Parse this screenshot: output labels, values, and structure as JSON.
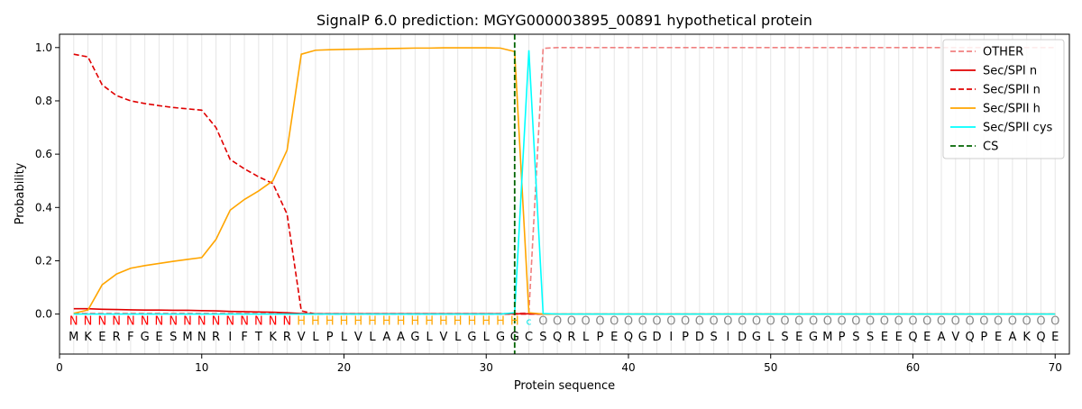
{
  "chart_data": {
    "type": "line",
    "title": "SignalP 6.0 prediction: MGYG000003895_00891 hypothetical protein",
    "xlabel": "Protein sequence",
    "ylabel": "Probability",
    "xlim": [
      0,
      71
    ],
    "ylim": [
      -0.15,
      1.05
    ],
    "xticks": [
      0,
      10,
      20,
      30,
      40,
      50,
      60,
      70
    ],
    "yticks": [
      0.0,
      0.2,
      0.4,
      0.6,
      0.8,
      1.0
    ],
    "grid": "vertical lines at each residue position",
    "legend_position": "top-right",
    "sequence": [
      "M",
      "K",
      "E",
      "R",
      "F",
      "G",
      "E",
      "S",
      "M",
      "N",
      "R",
      "I",
      "F",
      "T",
      "K",
      "R",
      "V",
      "L",
      "P",
      "L",
      "V",
      "L",
      "A",
      "A",
      "G",
      "L",
      "V",
      "L",
      "G",
      "L",
      "G",
      "G",
      "C",
      "S",
      "Q",
      "R",
      "L",
      "P",
      "E",
      "Q",
      "G",
      "D",
      "I",
      "P",
      "D",
      "S",
      "I",
      "D",
      "G",
      "L",
      "S",
      "E",
      "G",
      "M",
      "P",
      "S",
      "S",
      "E",
      "E",
      "Q",
      "E",
      "A",
      "V",
      "Q",
      "P",
      "E",
      "A",
      "K",
      "Q",
      "E"
    ],
    "region_labels": [
      "N",
      "N",
      "N",
      "N",
      "N",
      "N",
      "N",
      "N",
      "N",
      "N",
      "N",
      "N",
      "N",
      "N",
      "N",
      "N",
      "H",
      "H",
      "H",
      "H",
      "H",
      "H",
      "H",
      "H",
      "H",
      "H",
      "H",
      "H",
      "H",
      "H",
      "H",
      "H",
      "C",
      "O",
      "O",
      "O",
      "O",
      "O",
      "O",
      "O",
      "O",
      "O",
      "O",
      "O",
      "O",
      "O",
      "O",
      "O",
      "O",
      "O",
      "O",
      "O",
      "O",
      "O",
      "O",
      "O",
      "O",
      "O",
      "O",
      "O",
      "O",
      "O",
      "O",
      "O",
      "O",
      "O",
      "O",
      "O",
      "O",
      "O"
    ],
    "region_colors": {
      "N": "#ff0000",
      "H": "#ffa500",
      "C": "#00e5e5",
      "O": "#888888"
    },
    "cs_position": 32,
    "x": [
      1,
      2,
      3,
      4,
      5,
      6,
      7,
      8,
      9,
      10,
      11,
      12,
      13,
      14,
      15,
      16,
      17,
      18,
      19,
      20,
      21,
      22,
      23,
      24,
      25,
      26,
      27,
      28,
      29,
      30,
      31,
      32,
      33,
      34,
      35,
      36,
      37,
      38,
      39,
      40,
      41,
      42,
      43,
      44,
      45,
      46,
      47,
      48,
      49,
      50,
      51,
      52,
      53,
      54,
      55,
      56,
      57,
      58,
      59,
      60,
      61,
      62,
      63,
      64,
      65,
      66,
      67,
      68,
      69,
      70
    ],
    "series": [
      {
        "name": "OTHER",
        "color": "#f08080",
        "dash": "dashed",
        "values": [
          0.003,
          0.003,
          0.003,
          0.003,
          0.003,
          0.003,
          0.003,
          0.003,
          0.003,
          0.003,
          0.003,
          0.003,
          0.003,
          0.003,
          0.003,
          0.003,
          0.003,
          0.002,
          0.002,
          0.002,
          0.002,
          0.002,
          0.002,
          0.002,
          0.002,
          0.002,
          0.002,
          0.002,
          0.002,
          0.002,
          0.002,
          0.002,
          0.005,
          0.997,
          1.0,
          1.0,
          1.0,
          1.0,
          1.0,
          1.0,
          1.0,
          1.0,
          1.0,
          1.0,
          1.0,
          1.0,
          1.0,
          1.0,
          1.0,
          1.0,
          1.0,
          1.0,
          1.0,
          1.0,
          1.0,
          1.0,
          1.0,
          1.0,
          1.0,
          1.0,
          1.0,
          1.0,
          1.0,
          1.0,
          1.0,
          1.0,
          1.0,
          1.0,
          1.0,
          1.0
        ]
      },
      {
        "name": "Sec/SPI n",
        "color": "#e00000",
        "dash": "solid",
        "values": [
          0.02,
          0.02,
          0.018,
          0.017,
          0.016,
          0.015,
          0.015,
          0.014,
          0.014,
          0.013,
          0.012,
          0.01,
          0.009,
          0.008,
          0.007,
          0.005,
          0.002,
          0.001,
          0.001,
          0.001,
          0.001,
          0.001,
          0.001,
          0.001,
          0.001,
          0.001,
          0.001,
          0.001,
          0.001,
          0.001,
          0.001,
          0.001,
          0.001,
          0.0,
          0.0,
          0.0,
          0.0,
          0.0,
          0.0,
          0.0,
          0.0,
          0.0,
          0.0,
          0.0,
          0.0,
          0.0,
          0.0,
          0.0,
          0.0,
          0.0,
          0.0,
          0.0,
          0.0,
          0.0,
          0.0,
          0.0,
          0.0,
          0.0,
          0.0,
          0.0,
          0.0,
          0.0,
          0.0,
          0.0,
          0.0,
          0.0,
          0.0,
          0.0,
          0.0,
          0.0
        ]
      },
      {
        "name": "Sec/SPII n",
        "color": "#e00000",
        "dash": "dashed",
        "values": [
          0.975,
          0.965,
          0.86,
          0.82,
          0.8,
          0.79,
          0.782,
          0.775,
          0.77,
          0.765,
          0.7,
          0.58,
          0.545,
          0.515,
          0.49,
          0.375,
          0.012,
          0.0,
          0.0,
          0.0,
          0.0,
          0.0,
          0.0,
          0.0,
          0.0,
          0.0,
          0.0,
          0.0,
          0.0,
          0.0,
          0.0,
          0.0,
          0.0,
          0.0,
          0.0,
          0.0,
          0.0,
          0.0,
          0.0,
          0.0,
          0.0,
          0.0,
          0.0,
          0.0,
          0.0,
          0.0,
          0.0,
          0.0,
          0.0,
          0.0,
          0.0,
          0.0,
          0.0,
          0.0,
          0.0,
          0.0,
          0.0,
          0.0,
          0.0,
          0.0,
          0.0,
          0.0,
          0.0,
          0.0,
          0.0,
          0.0,
          0.0,
          0.0,
          0.0,
          0.0
        ]
      },
      {
        "name": "Sec/SPII h",
        "color": "#ffa500",
        "dash": "solid",
        "values": [
          0.003,
          0.015,
          0.11,
          0.15,
          0.172,
          0.182,
          0.19,
          0.198,
          0.205,
          0.212,
          0.28,
          0.39,
          0.43,
          0.462,
          0.5,
          0.615,
          0.975,
          0.99,
          0.992,
          0.993,
          0.994,
          0.995,
          0.996,
          0.997,
          0.998,
          0.998,
          0.999,
          0.999,
          0.999,
          0.999,
          0.998,
          0.985,
          0.005,
          0.0,
          0.0,
          0.0,
          0.0,
          0.0,
          0.0,
          0.0,
          0.0,
          0.0,
          0.0,
          0.0,
          0.0,
          0.0,
          0.0,
          0.0,
          0.0,
          0.0,
          0.0,
          0.0,
          0.0,
          0.0,
          0.0,
          0.0,
          0.0,
          0.0,
          0.0,
          0.0,
          0.0,
          0.0,
          0.0,
          0.0,
          0.0,
          0.0,
          0.0,
          0.0,
          0.0,
          0.0
        ]
      },
      {
        "name": "Sec/SPII cys",
        "color": "#00ffff",
        "dash": "solid",
        "values": [
          0.0,
          0.0,
          0.0,
          0.0,
          0.0,
          0.0,
          0.0,
          0.0,
          0.0,
          0.0,
          0.0,
          0.0,
          0.0,
          0.0,
          0.0,
          0.0,
          0.0,
          0.0,
          0.0,
          0.0,
          0.0,
          0.0,
          0.0,
          0.0,
          0.0,
          0.0,
          0.0,
          0.0,
          0.0,
          0.0,
          0.0,
          0.005,
          0.99,
          0.002,
          0.0,
          0.0,
          0.0,
          0.0,
          0.0,
          0.0,
          0.0,
          0.0,
          0.0,
          0.0,
          0.0,
          0.0,
          0.0,
          0.0,
          0.0,
          0.0,
          0.0,
          0.0,
          0.0,
          0.0,
          0.0,
          0.0,
          0.0,
          0.0,
          0.0,
          0.0,
          0.0,
          0.0,
          0.0,
          0.0,
          0.0,
          0.0,
          0.0,
          0.0,
          0.0,
          0.0
        ]
      }
    ],
    "cs_legend": {
      "name": "CS",
      "color": "#006400",
      "dash": "dashed"
    }
  }
}
